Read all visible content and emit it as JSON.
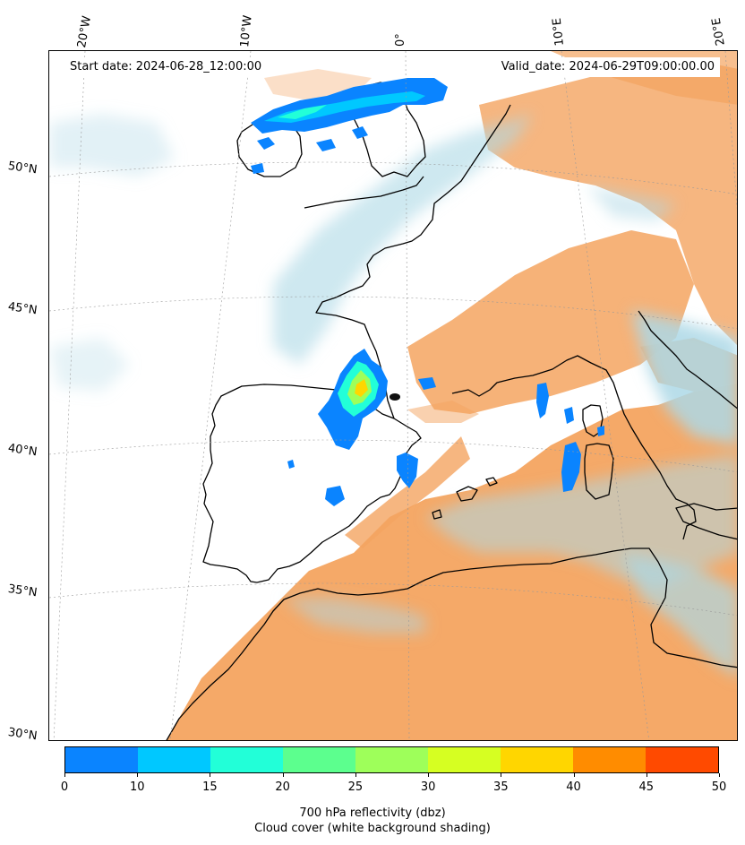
{
  "start_date": "Start date: 2024-06-28_12:00:00",
  "valid_date": "Valid_date: 2024-06-29T09:00:00.00",
  "lat_labels": [
    "50°N",
    "45°N",
    "40°N",
    "35°N",
    "30°N"
  ],
  "lon_labels": [
    "20°W",
    "10°W",
    "0°",
    "10°E",
    "20°E"
  ],
  "colorbar": {
    "ticks": [
      "0",
      "10",
      "15",
      "20",
      "25",
      "30",
      "35",
      "40",
      "45",
      "50"
    ],
    "colors": [
      "#0a84ff",
      "#00c8ff",
      "#22ffd8",
      "#5cff8e",
      "#9eff5a",
      "#d6ff22",
      "#ffd600",
      "#ff8c00",
      "#ff4a00"
    ]
  },
  "caption_line1": "700 hPa reflectivity (dbz)",
  "caption_line2": "Cloud cover (white background shading)",
  "colors": {
    "dry_air": "#f4a460",
    "moist_air": "#add8e6",
    "coastline": "#000000"
  }
}
